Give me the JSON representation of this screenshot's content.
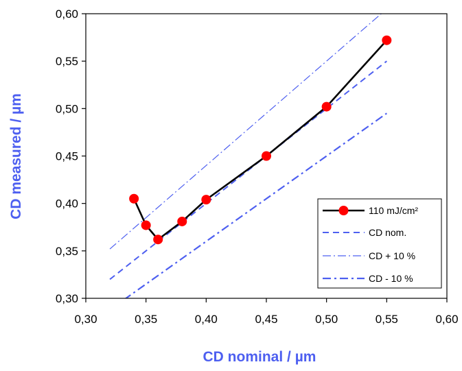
{
  "chart_data": {
    "type": "line",
    "xlabel": "CD nominal / µm",
    "ylabel": "CD measured / µm",
    "label_color": "#4d5ff0",
    "xlim": [
      0.3,
      0.6
    ],
    "ylim": [
      0.3,
      0.6
    ],
    "x_ticks": [
      "0,30",
      "0,35",
      "0,40",
      "0,45",
      "0,50",
      "0,55",
      "0,60"
    ],
    "y_ticks": [
      "0,30",
      "0,35",
      "0,40",
      "0,45",
      "0,50",
      "0,55",
      "0,60"
    ],
    "grid": false,
    "legend_placement": "bottom-right",
    "series": [
      {
        "name": "110 mJ/cm²",
        "color": "#000000",
        "marker_color": "#ff0000",
        "style": "solid-with-markers",
        "x": [
          0.34,
          0.35,
          0.36,
          0.38,
          0.4,
          0.45,
          0.5,
          0.55
        ],
        "y": [
          0.405,
          0.377,
          0.362,
          0.381,
          0.404,
          0.45,
          0.502,
          0.572
        ]
      },
      {
        "name": "CD nom.",
        "color": "#4d5ff0",
        "style": "dashed",
        "x": [
          0.32,
          0.55
        ],
        "y": [
          0.32,
          0.55
        ]
      },
      {
        "name": "CD + 10 %",
        "color": "#4d5ff0",
        "style": "dash-dot-thin",
        "x": [
          0.32,
          0.55
        ],
        "y": [
          0.352,
          0.605
        ]
      },
      {
        "name": "CD - 10 %",
        "color": "#4d5ff0",
        "style": "dash-dot",
        "x": [
          0.32,
          0.55
        ],
        "y": [
          0.288,
          0.495
        ]
      }
    ]
  }
}
